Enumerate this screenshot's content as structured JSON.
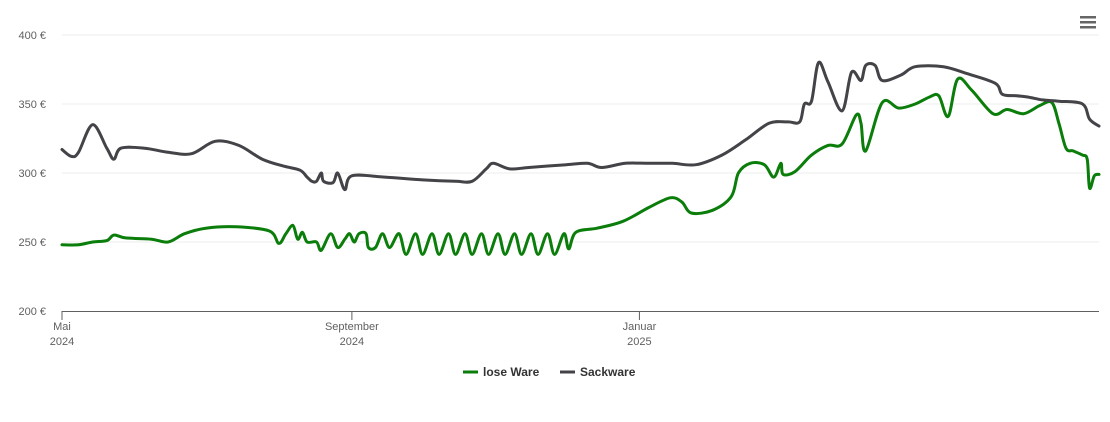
{
  "menu": {
    "icon": "hamburger-menu-icon"
  },
  "chart_data": {
    "type": "line",
    "title": "",
    "xlabel": "",
    "ylabel": "",
    "ylim": [
      200,
      400
    ],
    "xlim": [
      "2024-05-01",
      "2025-07-15"
    ],
    "yticks": [
      200,
      250,
      300,
      350,
      400
    ],
    "ytick_labels": [
      "200 €",
      "250 €",
      "300 €",
      "350 €",
      "400 €"
    ],
    "xticks": [
      {
        "date": "2024-05-01",
        "line1": "Mai",
        "line2": "2024"
      },
      {
        "date": "2024-09-01",
        "line1": "September",
        "line2": "2024"
      },
      {
        "date": "2025-01-01",
        "line1": "Januar",
        "line2": "2025"
      }
    ],
    "grid": true,
    "legend_position": "bottom-center",
    "series": [
      {
        "name": "lose Ware",
        "color": "#0a7d0a",
        "points": [
          [
            "2024-05-01",
            248
          ],
          [
            "2024-05-08",
            248
          ],
          [
            "2024-05-14",
            250
          ],
          [
            "2024-05-20",
            251
          ],
          [
            "2024-05-23",
            255
          ],
          [
            "2024-05-28",
            253
          ],
          [
            "2024-06-08",
            252
          ],
          [
            "2024-06-15",
            250
          ],
          [
            "2024-06-22",
            256
          ],
          [
            "2024-07-01",
            260
          ],
          [
            "2024-07-14",
            261
          ],
          [
            "2024-07-28",
            258
          ],
          [
            "2024-08-01",
            249
          ],
          [
            "2024-08-04",
            256
          ],
          [
            "2024-08-07",
            262
          ],
          [
            "2024-08-09",
            252
          ],
          [
            "2024-08-11",
            257
          ],
          [
            "2024-08-13",
            250
          ],
          [
            "2024-08-17",
            250
          ],
          [
            "2024-08-19",
            244
          ],
          [
            "2024-08-23",
            256
          ],
          [
            "2024-08-26",
            246
          ],
          [
            "2024-08-29",
            252
          ],
          [
            "2024-08-31",
            256
          ],
          [
            "2024-09-02",
            250
          ],
          [
            "2024-09-04",
            256
          ],
          [
            "2024-09-07",
            256
          ],
          [
            "2024-09-08",
            246
          ],
          [
            "2024-09-11",
            246
          ],
          [
            "2024-09-14",
            256
          ],
          [
            "2024-09-17",
            246
          ],
          [
            "2024-09-21",
            256
          ],
          [
            "2024-09-24",
            241
          ],
          [
            "2024-09-28",
            256
          ],
          [
            "2024-10-01",
            241
          ],
          [
            "2024-10-05",
            256
          ],
          [
            "2024-10-08",
            241
          ],
          [
            "2024-10-12",
            256
          ],
          [
            "2024-10-15",
            241
          ],
          [
            "2024-10-19",
            256
          ],
          [
            "2024-10-22",
            241
          ],
          [
            "2024-10-26",
            256
          ],
          [
            "2024-10-29",
            241
          ],
          [
            "2024-11-02",
            256
          ],
          [
            "2024-11-05",
            241
          ],
          [
            "2024-11-09",
            256
          ],
          [
            "2024-11-12",
            241
          ],
          [
            "2024-11-16",
            256
          ],
          [
            "2024-11-19",
            241
          ],
          [
            "2024-11-23",
            256
          ],
          [
            "2024-11-26",
            241
          ],
          [
            "2024-11-30",
            256
          ],
          [
            "2024-12-02",
            245
          ],
          [
            "2024-12-05",
            257
          ],
          [
            "2024-12-14",
            260
          ],
          [
            "2024-12-25",
            265
          ],
          [
            "2025-01-05",
            275
          ],
          [
            "2025-01-14",
            282
          ],
          [
            "2025-01-19",
            279
          ],
          [
            "2025-01-23",
            271
          ],
          [
            "2025-02-01",
            273
          ],
          [
            "2025-02-09",
            283
          ],
          [
            "2025-02-12",
            300
          ],
          [
            "2025-02-17",
            307
          ],
          [
            "2025-02-23",
            306
          ],
          [
            "2025-02-27",
            297
          ],
          [
            "2025-03-02",
            307
          ],
          [
            "2025-03-03",
            299
          ],
          [
            "2025-03-08",
            301
          ],
          [
            "2025-03-15",
            313
          ],
          [
            "2025-03-22",
            320
          ],
          [
            "2025-03-28",
            321
          ],
          [
            "2025-04-03",
            342
          ],
          [
            "2025-04-05",
            336
          ],
          [
            "2025-04-07",
            316
          ],
          [
            "2025-04-14",
            351
          ],
          [
            "2025-04-21",
            347
          ],
          [
            "2025-04-28",
            350
          ],
          [
            "2025-05-04",
            355
          ],
          [
            "2025-05-08",
            356
          ],
          [
            "2025-05-12",
            341
          ],
          [
            "2025-05-16",
            368
          ],
          [
            "2025-05-22",
            360
          ],
          [
            "2025-05-31",
            343
          ],
          [
            "2025-06-06",
            346
          ],
          [
            "2025-06-13",
            343
          ],
          [
            "2025-06-20",
            349
          ],
          [
            "2025-06-25",
            351
          ],
          [
            "2025-06-28",
            336
          ],
          [
            "2025-07-01",
            318
          ],
          [
            "2025-07-04",
            316
          ],
          [
            "2025-07-08",
            313
          ],
          [
            "2025-07-10",
            310
          ],
          [
            "2025-07-11",
            289
          ],
          [
            "2025-07-13",
            298
          ],
          [
            "2025-07-15",
            299
          ]
        ]
      },
      {
        "name": "Sackware",
        "color": "#434348",
        "points": [
          [
            "2024-05-01",
            317
          ],
          [
            "2024-05-05",
            312
          ],
          [
            "2024-05-08",
            315
          ],
          [
            "2024-05-14",
            335
          ],
          [
            "2024-05-20",
            318
          ],
          [
            "2024-05-23",
            310
          ],
          [
            "2024-05-26",
            318
          ],
          [
            "2024-06-05",
            318
          ],
          [
            "2024-06-15",
            315
          ],
          [
            "2024-06-25",
            314
          ],
          [
            "2024-07-05",
            323
          ],
          [
            "2024-07-15",
            320
          ],
          [
            "2024-07-25",
            310
          ],
          [
            "2024-08-03",
            305
          ],
          [
            "2024-08-10",
            302
          ],
          [
            "2024-08-13",
            297
          ],
          [
            "2024-08-15",
            294
          ],
          [
            "2024-08-17",
            294
          ],
          [
            "2024-08-19",
            300
          ],
          [
            "2024-08-20",
            294
          ],
          [
            "2024-08-24",
            293
          ],
          [
            "2024-08-26",
            300
          ],
          [
            "2024-08-29",
            288
          ],
          [
            "2024-09-01",
            298
          ],
          [
            "2024-09-15",
            297
          ],
          [
            "2024-10-01",
            295
          ],
          [
            "2024-10-15",
            294
          ],
          [
            "2024-10-22",
            294
          ],
          [
            "2024-10-28",
            303
          ],
          [
            "2024-10-31",
            307
          ],
          [
            "2024-11-07",
            303
          ],
          [
            "2024-11-15",
            304
          ],
          [
            "2024-12-01",
            306
          ],
          [
            "2024-12-10",
            307
          ],
          [
            "2024-12-16",
            304
          ],
          [
            "2024-12-26",
            307
          ],
          [
            "2025-01-05",
            307
          ],
          [
            "2025-01-15",
            307
          ],
          [
            "2025-01-25",
            306
          ],
          [
            "2025-02-05",
            313
          ],
          [
            "2025-02-15",
            324
          ],
          [
            "2025-02-25",
            336
          ],
          [
            "2025-03-05",
            337
          ],
          [
            "2025-03-10",
            337
          ],
          [
            "2025-03-12",
            350
          ],
          [
            "2025-03-15",
            352
          ],
          [
            "2025-03-18",
            380
          ],
          [
            "2025-03-22",
            366
          ],
          [
            "2025-03-28",
            345
          ],
          [
            "2025-04-01",
            373
          ],
          [
            "2025-04-05",
            367
          ],
          [
            "2025-04-07",
            378
          ],
          [
            "2025-04-11",
            378
          ],
          [
            "2025-04-14",
            367
          ],
          [
            "2025-04-22",
            371
          ],
          [
            "2025-04-28",
            377
          ],
          [
            "2025-05-10",
            377
          ],
          [
            "2025-05-20",
            372
          ],
          [
            "2025-06-01",
            365
          ],
          [
            "2025-06-04",
            357
          ],
          [
            "2025-06-10",
            356
          ],
          [
            "2025-06-15",
            355
          ],
          [
            "2025-06-21",
            353
          ],
          [
            "2025-06-28",
            352
          ],
          [
            "2025-07-08",
            350
          ],
          [
            "2025-07-11",
            339
          ],
          [
            "2025-07-15",
            334
          ]
        ]
      }
    ]
  }
}
